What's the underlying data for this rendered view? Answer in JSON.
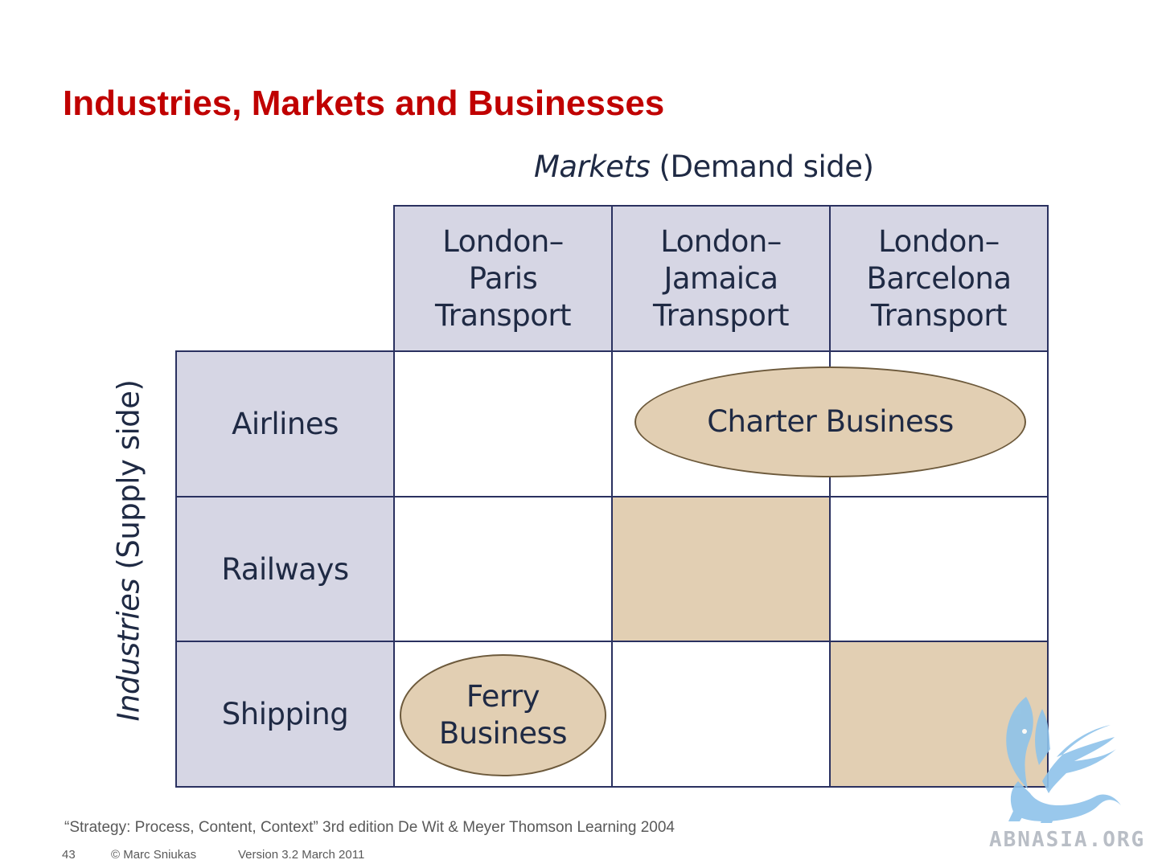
{
  "title": "Industries, Markets and Businesses",
  "axis": {
    "markets_emphasis": "Markets",
    "markets_rest": " (Demand side)",
    "industries_emphasis": "Industries",
    "industries_rest": " (Supply side)"
  },
  "columns": [
    {
      "lines": [
        "London–",
        "Paris",
        "Transport"
      ]
    },
    {
      "lines": [
        "London–",
        "Jamaica",
        "Transport"
      ]
    },
    {
      "lines": [
        "London–",
        "Barcelona",
        "Transport"
      ]
    }
  ],
  "rows": [
    "Airlines",
    "Railways",
    "Shipping"
  ],
  "businesses": {
    "charter": "Charter Business",
    "ferry_line1": "Ferry",
    "ferry_line2": "Business"
  },
  "citation": "“Strategy: Process, Content, Context” 3rd edition De Wit & Meyer Thomson Learning 2004",
  "footer": {
    "page_number": "43",
    "author": "© Marc Sniukas",
    "version": "Version 3.2 March 2011"
  },
  "watermark": "ABNASIA.ORG",
  "colors": {
    "title": "#c00000",
    "header_fill": "#d6d6e4",
    "business_fill": "#e2cfb3",
    "border": "#2a3160",
    "watermark": "#8ec3ea"
  }
}
